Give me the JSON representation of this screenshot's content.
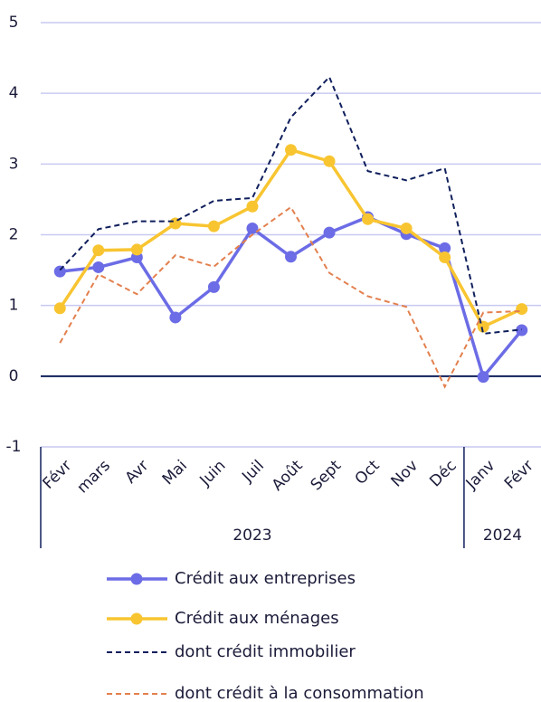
{
  "chart_data": {
    "type": "line",
    "categories": [
      "Févr",
      "mars",
      "Avr",
      "Mai",
      "Juin",
      "Juil",
      "Août",
      "Sept",
      "Oct",
      "Nov",
      "Déc",
      "Janv",
      "Févr"
    ],
    "groups": [
      {
        "label": "2023",
        "span": 11
      },
      {
        "label": "2024",
        "span": 2
      }
    ],
    "ylim": [
      -1,
      5
    ],
    "yticks": [
      -1,
      0,
      1,
      2,
      3,
      4,
      5
    ],
    "grid": true,
    "series": [
      {
        "name": "Crédit aux entreprises",
        "color": "#6c6ce6",
        "dashed": false,
        "markers": true,
        "values": [
          1.48,
          1.54,
          1.68,
          0.83,
          1.26,
          2.09,
          1.69,
          2.03,
          2.25,
          2.01,
          1.81,
          -0.01,
          0.65
        ]
      },
      {
        "name": "Crédit aux ménages",
        "color": "#f8c531",
        "dashed": false,
        "markers": true,
        "values": [
          0.96,
          1.78,
          1.79,
          2.16,
          2.12,
          2.4,
          3.2,
          3.04,
          2.22,
          2.09,
          1.68,
          0.7,
          0.95
        ]
      },
      {
        "name": "dont crédit immobilier",
        "color": "#0f1f5c",
        "dashed": true,
        "markers": false,
        "values": [
          1.5,
          2.08,
          2.19,
          2.19,
          2.48,
          2.52,
          3.66,
          4.23,
          2.9,
          2.77,
          2.94,
          0.6,
          0.66
        ]
      },
      {
        "name": "dont crédit à la consommation",
        "color": "#e3804e",
        "dashed": true,
        "markers": false,
        "values": [
          0.47,
          1.44,
          1.16,
          1.71,
          1.55,
          2.0,
          2.39,
          1.46,
          1.13,
          0.98,
          -0.15,
          0.9,
          0.92
        ]
      }
    ]
  }
}
